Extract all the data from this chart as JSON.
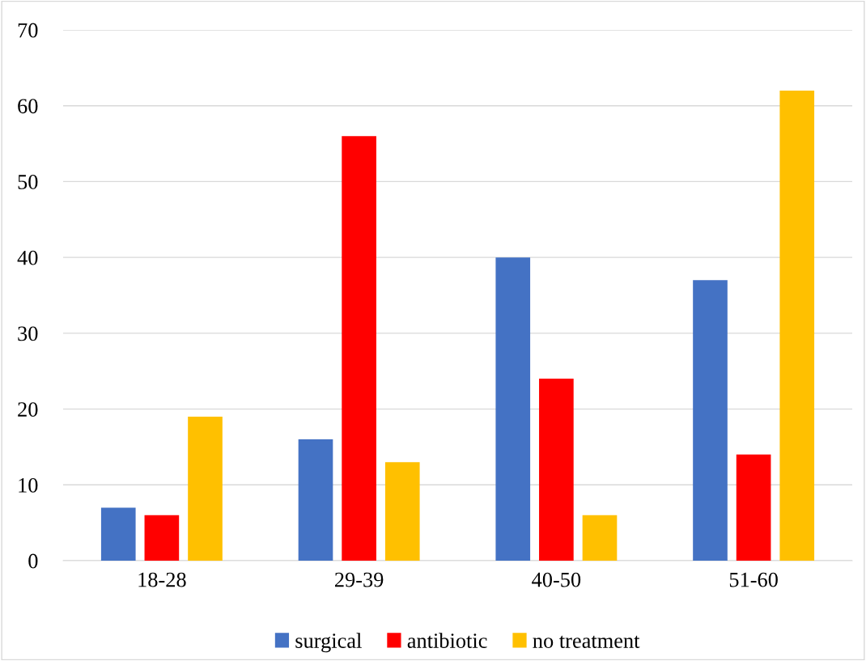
{
  "chart_data": {
    "type": "bar",
    "categories": [
      "18-28",
      "29-39",
      "40-50",
      "51-60"
    ],
    "series": [
      {
        "name": "surgical",
        "color": "#4472c4",
        "values": [
          7,
          16,
          40,
          37
        ]
      },
      {
        "name": "antibiotic",
        "color": "#ff0000",
        "values": [
          6,
          56,
          24,
          14
        ]
      },
      {
        "name": "no treatment",
        "color": "#ffc000",
        "values": [
          19,
          13,
          6,
          62
        ]
      }
    ],
    "ylim": [
      0,
      70
    ],
    "yticks": [
      0,
      10,
      20,
      30,
      40,
      50,
      60,
      70
    ],
    "grid": "y",
    "legend": "bottom"
  }
}
